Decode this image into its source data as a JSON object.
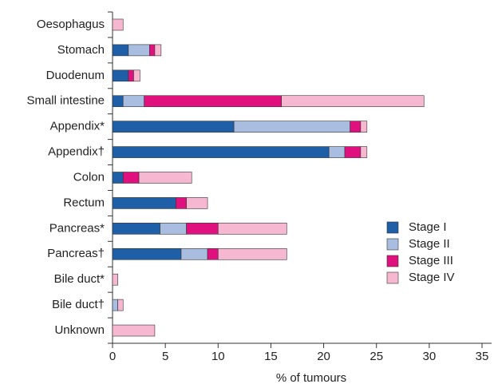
{
  "chart_data": {
    "type": "stacked-barh",
    "x_label": "% of tumours",
    "categories": [
      "Oesophagus",
      "Stomach",
      "Duodenum",
      "Small intestine",
      "Appendix*",
      "Appendix†",
      "Colon",
      "Rectum",
      "Pancreas*",
      "Pancreas†",
      "Bile duct*",
      "Bile duct†",
      "Unknown"
    ],
    "series": [
      {
        "name": "Stage I",
        "color": "#1f5fa8",
        "values": [
          0,
          1.5,
          1.5,
          1.0,
          11.5,
          20.5,
          1.0,
          6.0,
          4.5,
          6.5,
          0,
          0,
          0
        ]
      },
      {
        "name": "Stage II",
        "color": "#a9bde0",
        "values": [
          0,
          2.0,
          0,
          2.0,
          11.0,
          1.5,
          0,
          0,
          2.5,
          2.5,
          0,
          0.5,
          0
        ]
      },
      {
        "name": "Stage III",
        "color": "#e0117f",
        "values": [
          0,
          0.5,
          0.5,
          13.0,
          1.0,
          1.5,
          1.5,
          1.0,
          3.0,
          1.0,
          0,
          0,
          0
        ]
      },
      {
        "name": "Stage IV",
        "color": "#f5b8d0",
        "values": [
          1.0,
          0.6,
          0.6,
          13.5,
          0.6,
          0.6,
          5.0,
          2.0,
          6.5,
          6.5,
          0.5,
          0.5,
          4.0
        ]
      }
    ],
    "xlim": [
      0,
      35
    ],
    "xticks": [
      0,
      5,
      10,
      15,
      20,
      25,
      30,
      35
    ],
    "legend": "right"
  }
}
